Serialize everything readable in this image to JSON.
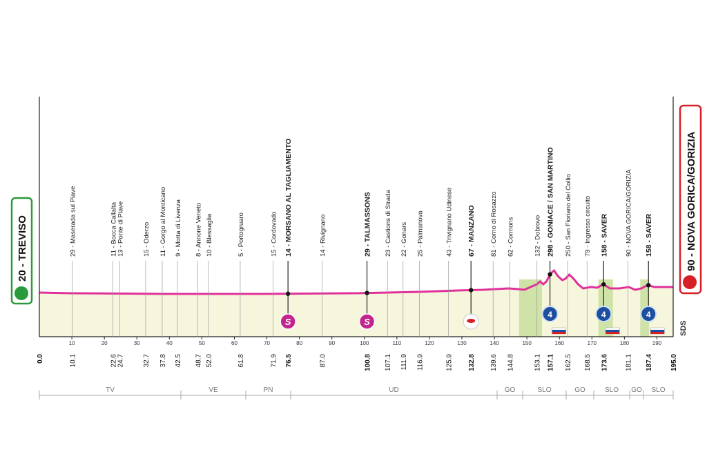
{
  "start": {
    "label": "20 - TREVISO"
  },
  "finish": {
    "label": "90 - NOVA GORICA/GORIZIA"
  },
  "side_label": "SDS",
  "icons": {
    "sprint": "S",
    "kom": "4"
  },
  "waypoints": [
    {
      "label": "29 - Maserada sul Piave",
      "km": 10.1
    },
    {
      "label": "11 - Bocca Callalta",
      "km": 22.6
    },
    {
      "label": "13 - Ponte di Piave",
      "km": 24.7
    },
    {
      "label": "15 - Oderzo",
      "km": 32.7
    },
    {
      "label": "11 - Gorgo al Monticano",
      "km": 37.8
    },
    {
      "label": "9 - Motta di Livenza",
      "km": 42.5
    },
    {
      "label": "8 - Annone Veneto",
      "km": 48.7
    },
    {
      "label": "10 - Blessaglia",
      "km": {
        "value": 52,
        "label": "52.0"
      }
    },
    {
      "label": "5 - Portogruaro",
      "km": 61.8
    },
    {
      "label": "15 - Cordovado",
      "km": 71.9
    },
    {
      "label": "14 - MORSANO AL TAGLIAMENTO",
      "km": 76.5,
      "kind": "sprint"
    },
    {
      "label": "14 - Rivignano",
      "km": {
        "value": 87,
        "label": "87.0"
      }
    },
    {
      "label": "29 - TALMASSONS",
      "km": 100.8,
      "kind": "sprint"
    },
    {
      "label": "23 - Castions di Strada",
      "km": 107.1
    },
    {
      "label": "22 - Gonars",
      "km": 111.9
    },
    {
      "label": "25 - Palmanova",
      "km": 116.9
    },
    {
      "label": "43 - Trivignano Udinese",
      "km": 125.9
    },
    {
      "label": "67 - MANZANO",
      "km": 132.8,
      "kind": "bonus"
    },
    {
      "label": "81 - Corno di Rosazzo",
      "km": 139.6
    },
    {
      "label": "62 - Cormons",
      "km": 144.8
    },
    {
      "label": "132 - Dobrovo",
      "km": 153.1
    },
    {
      "label": "298 - GONIACE / SAN MARTINO",
      "km": 157.1,
      "kind": "kom"
    },
    {
      "label": "250 - San Floriano del Collio",
      "km": 162.5
    },
    {
      "label": "79 - Ingresso circuito",
      "km": 168.5
    },
    {
      "label": "158 - SAVER",
      "km": 173.6,
      "kind": "kom"
    },
    {
      "label": "90 - NOVA GORICA/GORIZIA",
      "km": 181.1
    },
    {
      "label": "158 - SAVER",
      "km": 187.4,
      "kind": "kom"
    }
  ],
  "km_start": {
    "value": 0,
    "label": "0.0"
  },
  "km_finish": {
    "value": 195,
    "label": "195.0"
  },
  "km_ticks": [
    10,
    20,
    30,
    40,
    50,
    60,
    70,
    80,
    90,
    100,
    110,
    120,
    130,
    140,
    150,
    160,
    170,
    180,
    190
  ],
  "regions": [
    "TV",
    "VE",
    "PN",
    "UD",
    "GO",
    "SLO",
    "GO",
    "SLO",
    "GO",
    "SLO"
  ]
}
